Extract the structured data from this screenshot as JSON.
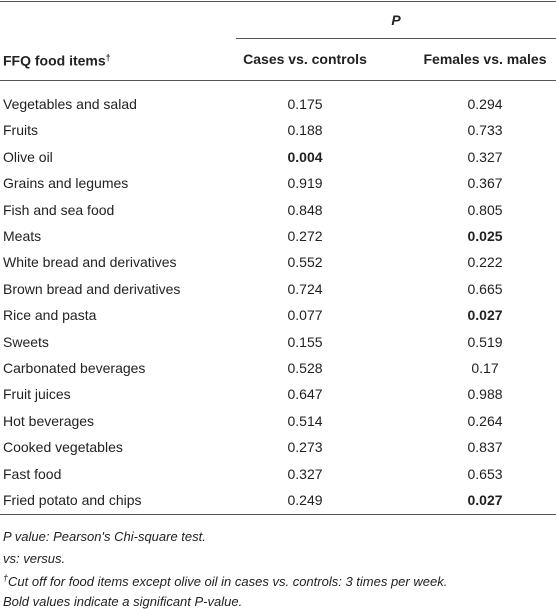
{
  "table": {
    "group_header": "P",
    "columns": [
      {
        "text": "FFQ food items",
        "mark": "†"
      },
      "Cases vs. controls",
      "Females vs. males"
    ],
    "rows": [
      [
        "Vegetables and salad",
        "0.175",
        "0.294"
      ],
      [
        "Fruits",
        "0.188",
        "0.733"
      ],
      [
        "Olive oil",
        {
          "text": "0.004",
          "bold": true
        },
        "0.327"
      ],
      [
        "Grains and legumes",
        "0.919",
        "0.367"
      ],
      [
        "Fish and sea food",
        "0.848",
        "0.805"
      ],
      [
        "Meats",
        "0.272",
        {
          "text": "0.025",
          "bold": true
        }
      ],
      [
        "White bread and derivatives",
        "0.552",
        "0.222"
      ],
      [
        "Brown bread and derivatives",
        "0.724",
        "0.665"
      ],
      [
        "Rice and pasta",
        "0.077",
        {
          "text": "0.027",
          "bold": true
        }
      ],
      [
        "Sweets",
        "0.155",
        "0.519"
      ],
      [
        "Carbonated beverages",
        "0.528",
        "0.17"
      ],
      [
        "Fruit juices",
        "0.647",
        "0.988"
      ],
      [
        "Hot beverages",
        "0.514",
        "0.264"
      ],
      [
        "Cooked vegetables",
        "0.273",
        "0.837"
      ],
      [
        "Fast food",
        "0.327",
        "0.653"
      ],
      [
        "Fried potato and chips",
        "0.249",
        {
          "text": "0.027",
          "bold": true
        }
      ]
    ],
    "footnotes": [
      {
        "text": "P value: Pearson's Chi-square test."
      },
      {
        "text": "vs: versus."
      },
      {
        "mark": "†",
        "text": "Cut off for food items except olive oil in cases vs. controls: 3 times per week."
      },
      {
        "text": "Bold values indicate a significant P-value."
      }
    ]
  }
}
